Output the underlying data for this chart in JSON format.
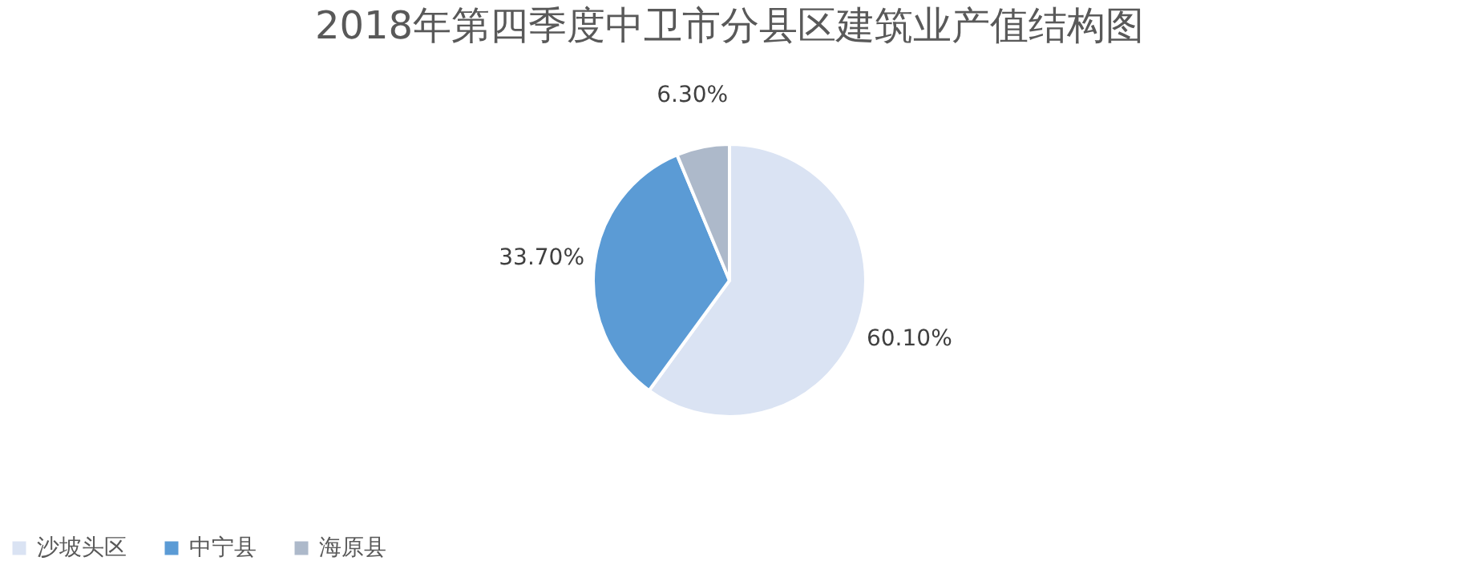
{
  "chart_data": {
    "type": "pie",
    "title": "2018年第四季度中卫市分县区建筑业产值结构图",
    "categories": [
      "沙坡头区",
      "中宁县",
      "海原县"
    ],
    "values": [
      60.1,
      33.7,
      6.3
    ],
    "colors": [
      "#dae3f3",
      "#5b9bd5",
      "#adb9ca"
    ],
    "value_labels": [
      "60.10%",
      "33.70%",
      "6.30%"
    ],
    "legend": "bottom"
  }
}
